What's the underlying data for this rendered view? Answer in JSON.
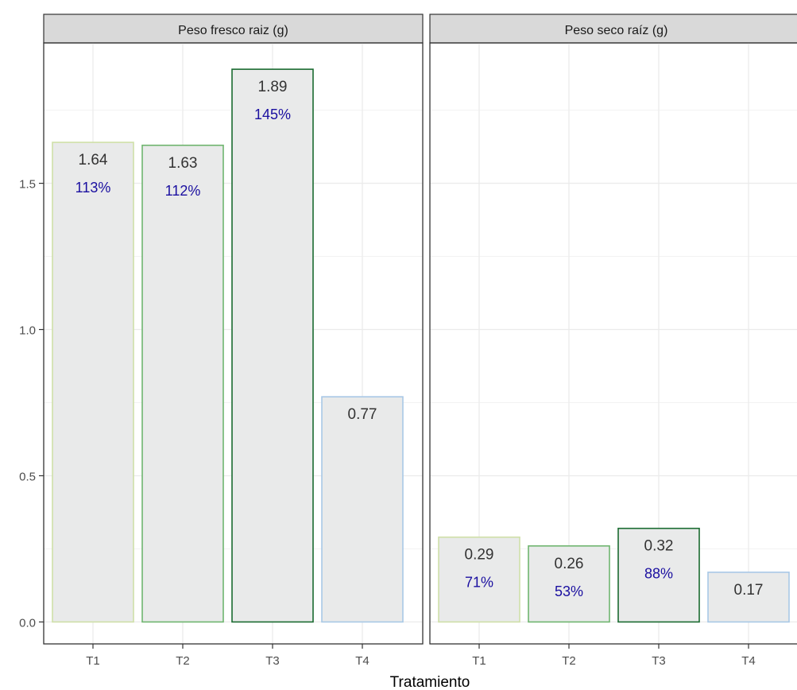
{
  "chart_data": {
    "type": "bar",
    "xlabel": "Tratamiento",
    "ylim": [
      -0.075,
      1.98
    ],
    "y_ticks": [
      0.0,
      0.5,
      1.0,
      1.5
    ],
    "y_tick_labels": [
      "0.0",
      "0.5",
      "1.0",
      "1.5"
    ],
    "grid": true,
    "panels": [
      {
        "strip_label": "Peso fresco raiz (g)",
        "categories": [
          "T1",
          "T2",
          "T3",
          "T4"
        ],
        "values": [
          1.64,
          1.63,
          1.89,
          0.77
        ],
        "value_labels": [
          "1.64",
          "1.63",
          "1.89",
          "0.77"
        ],
        "pct_labels": [
          "113%",
          "112%",
          "145%",
          ""
        ]
      },
      {
        "strip_label": "Peso seco raíz (g)",
        "categories": [
          "T1",
          "T2",
          "T3",
          "T4"
        ],
        "values": [
          0.29,
          0.26,
          0.32,
          0.17
        ],
        "value_labels": [
          "0.29",
          "0.26",
          "0.32",
          "0.17"
        ],
        "pct_labels": [
          "71%",
          "53%",
          "88%",
          ""
        ]
      }
    ],
    "colors": {
      "bar_fill": "#e9eaea",
      "bar_outlines": [
        "#cfe0a8",
        "#6fb56f",
        "#1a6b30",
        "#a8c8e6"
      ],
      "value_text": "#333333",
      "pct_text": "#1a0fa0",
      "strip_fill": "#d9d9d9",
      "grid": "#ebebeb"
    }
  }
}
